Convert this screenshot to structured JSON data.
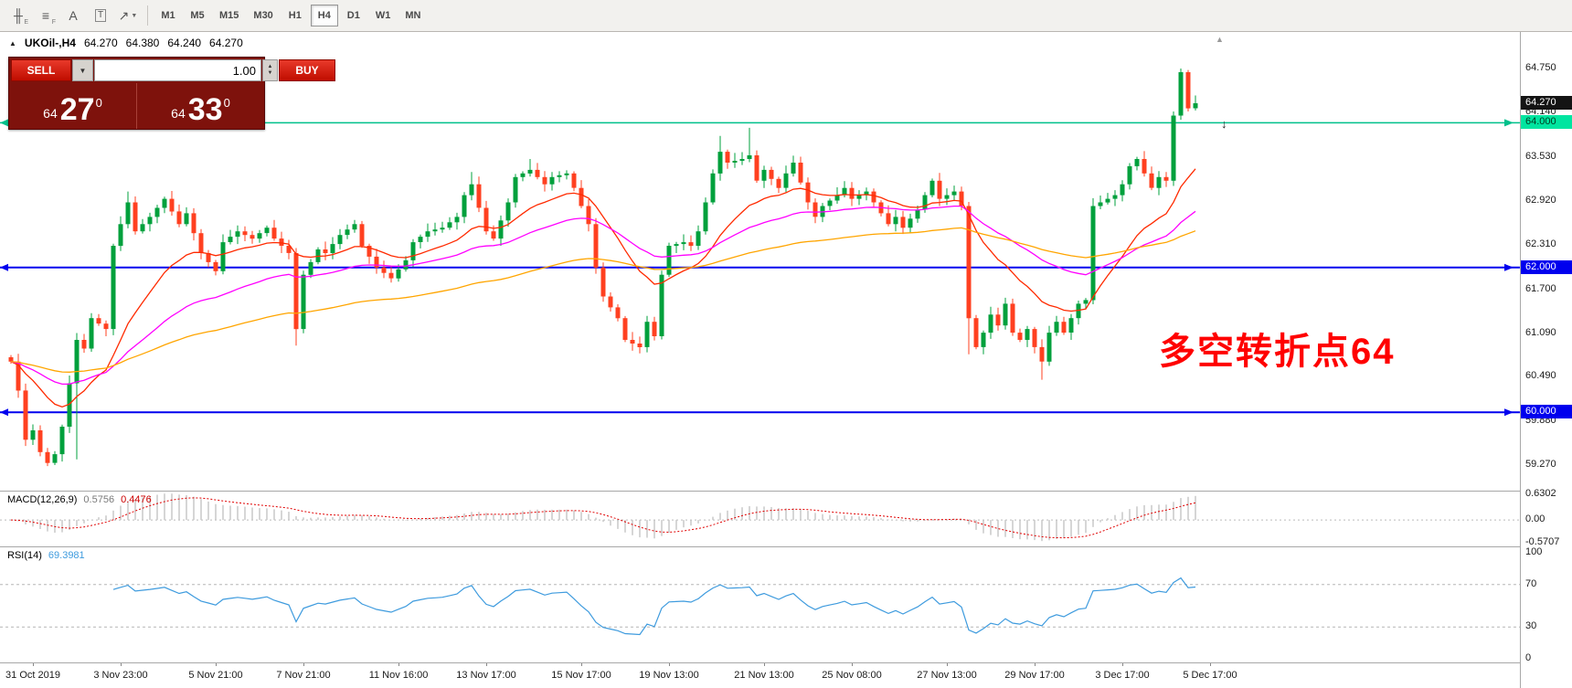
{
  "toolbar": {
    "icons": [
      {
        "name": "andrews-pitchfork-icon",
        "glyph": "╫",
        "sub": "E",
        "boxed": false,
        "dropdown": false
      },
      {
        "name": "fibonacci-lines-icon",
        "glyph": "≡",
        "sub": "F",
        "boxed": false,
        "dropdown": false
      },
      {
        "name": "text-label-icon",
        "glyph": "A",
        "sub": "",
        "boxed": false,
        "dropdown": false
      },
      {
        "name": "text-box-icon",
        "glyph": "T",
        "sub": "",
        "boxed": true,
        "dropdown": false
      },
      {
        "name": "arrow-tool-icon",
        "glyph": "↗",
        "sub": "",
        "boxed": false,
        "dropdown": true
      }
    ],
    "timeframes": [
      "M1",
      "M5",
      "M15",
      "M30",
      "H1",
      "H4",
      "D1",
      "W1",
      "MN"
    ],
    "active_timeframe": "H4"
  },
  "header": {
    "collapse_icon": "▲",
    "symbol": "UKOil-,H4",
    "open": "64.270",
    "high": "64.380",
    "low": "64.240",
    "close": "64.270"
  },
  "trade": {
    "sell_label": "SELL",
    "buy_label": "BUY",
    "volume": "1.00",
    "sell_price_main": "64",
    "sell_price_big": "27",
    "sell_price_sup": "0",
    "buy_price_main": "64",
    "buy_price_big": "33",
    "buy_price_sup": "0"
  },
  "annotation": {
    "text": "多空转折点64",
    "color": "#FF0000"
  },
  "chart_data": {
    "type": "candlestick",
    "symbol": "UKOil-",
    "timeframe": "H4",
    "up_color": "#00A03C",
    "down_color": "#FF4020",
    "y_axis_ticks": [
      "64.750",
      "64.140",
      "63.530",
      "62.920",
      "62.310",
      "61.700",
      "61.090",
      "60.490",
      "59.880",
      "59.270"
    ],
    "price_range": [
      58.9,
      65.25
    ],
    "candle_count": 163,
    "close_keypoints": [
      [
        0,
        60.7
      ],
      [
        1,
        60.3
      ],
      [
        2,
        59.62
      ],
      [
        3,
        59.75
      ],
      [
        4,
        59.45
      ],
      [
        5,
        59.3
      ],
      [
        6,
        59.42
      ],
      [
        7,
        59.8
      ],
      [
        9,
        61.0
      ],
      [
        10,
        60.88
      ],
      [
        11,
        61.3
      ],
      [
        13,
        61.15
      ],
      [
        14,
        62.3
      ],
      [
        16,
        62.9
      ],
      [
        17,
        62.5
      ],
      [
        19,
        62.7
      ],
      [
        21,
        62.95
      ],
      [
        23,
        62.6
      ],
      [
        24,
        62.75
      ],
      [
        26,
        62.2
      ],
      [
        28,
        61.95
      ],
      [
        29,
        62.35
      ],
      [
        31,
        62.5
      ],
      [
        33,
        62.4
      ],
      [
        35,
        62.55
      ],
      [
        36,
        62.4
      ],
      [
        38,
        62.2
      ],
      [
        39,
        61.15
      ],
      [
        40,
        61.9
      ],
      [
        42,
        62.25
      ],
      [
        43,
        62.2
      ],
      [
        45,
        62.45
      ],
      [
        47,
        62.6
      ],
      [
        48,
        62.3
      ],
      [
        50,
        62.0
      ],
      [
        52,
        61.85
      ],
      [
        54,
        62.1
      ],
      [
        55,
        62.35
      ],
      [
        57,
        62.5
      ],
      [
        59,
        62.55
      ],
      [
        61,
        62.7
      ],
      [
        62,
        63.0
      ],
      [
        63,
        63.15
      ],
      [
        65,
        62.5
      ],
      [
        66,
        62.4
      ],
      [
        68,
        62.9
      ],
      [
        69,
        63.25
      ],
      [
        71,
        63.35
      ],
      [
        73,
        63.15
      ],
      [
        74,
        63.25
      ],
      [
        76,
        63.3
      ],
      [
        77,
        63.1
      ],
      [
        79,
        62.6
      ],
      [
        80,
        62.0
      ],
      [
        81,
        61.6
      ],
      [
        83,
        61.3
      ],
      [
        84,
        61.0
      ],
      [
        86,
        60.9
      ],
      [
        87,
        61.25
      ],
      [
        88,
        61.05
      ],
      [
        89,
        61.9
      ],
      [
        90,
        62.3
      ],
      [
        92,
        62.35
      ],
      [
        93,
        62.3
      ],
      [
        94,
        62.5
      ],
      [
        96,
        63.3
      ],
      [
        97,
        63.6
      ],
      [
        98,
        63.45
      ],
      [
        100,
        63.5
      ],
      [
        101,
        63.55
      ],
      [
        102,
        63.2
      ],
      [
        103,
        63.35
      ],
      [
        105,
        63.1
      ],
      [
        106,
        63.3
      ],
      [
        107,
        63.45
      ],
      [
        109,
        62.9
      ],
      [
        110,
        62.7
      ],
      [
        111,
        62.85
      ],
      [
        113,
        63.0
      ],
      [
        114,
        63.1
      ],
      [
        115,
        62.95
      ],
      [
        117,
        63.05
      ],
      [
        118,
        62.9
      ],
      [
        120,
        62.6
      ],
      [
        121,
        62.7
      ],
      [
        122,
        62.55
      ],
      [
        124,
        62.8
      ],
      [
        125,
        63.0
      ],
      [
        126,
        63.2
      ],
      [
        127,
        62.95
      ],
      [
        129,
        63.05
      ],
      [
        130,
        62.85
      ],
      [
        131,
        61.3
      ],
      [
        132,
        60.9
      ],
      [
        133,
        61.1
      ],
      [
        134,
        61.35
      ],
      [
        135,
        61.2
      ],
      [
        136,
        61.5
      ],
      [
        137,
        61.1
      ],
      [
        138,
        61.0
      ],
      [
        139,
        61.15
      ],
      [
        140,
        60.9
      ],
      [
        141,
        60.7
      ],
      [
        142,
        61.1
      ],
      [
        143,
        61.25
      ],
      [
        144,
        61.1
      ],
      [
        145,
        61.3
      ],
      [
        146,
        61.5
      ],
      [
        147,
        61.55
      ],
      [
        148,
        62.85
      ],
      [
        149,
        62.9
      ],
      [
        150,
        62.95
      ],
      [
        151,
        63.0
      ],
      [
        152,
        63.15
      ],
      [
        153,
        63.4
      ],
      [
        154,
        63.5
      ],
      [
        155,
        63.3
      ],
      [
        156,
        63.1
      ],
      [
        157,
        63.25
      ],
      [
        158,
        63.2
      ],
      [
        159,
        64.1
      ],
      [
        160,
        64.7
      ],
      [
        161,
        64.2
      ],
      [
        162,
        64.27
      ]
    ],
    "extra_wicks": [
      [
        9,
        "low",
        59.35
      ],
      [
        16,
        "high",
        63.05
      ],
      [
        39,
        "low",
        60.92
      ],
      [
        63,
        "high",
        63.32
      ],
      [
        71,
        "high",
        63.5
      ],
      [
        97,
        "high",
        63.82
      ],
      [
        101,
        "high",
        63.93
      ],
      [
        131,
        "low",
        60.8
      ],
      [
        141,
        "low",
        60.45
      ],
      [
        160,
        "high",
        64.75
      ]
    ],
    "levels": [
      {
        "price": "64.000",
        "value": 64.0,
        "color": "#00C08B",
        "badge_bg": "#00E5A0",
        "badge_fg": "#00391F",
        "width": 1.5
      },
      {
        "price": "62.000",
        "value": 62.0,
        "color": "#0000EE",
        "badge_bg": "#0000EE",
        "badge_fg": "#FFFFFF",
        "width": 2
      },
      {
        "price": "60.000",
        "value": 60.0,
        "color": "#0000EE",
        "badge_bg": "#0000EE",
        "badge_fg": "#FFFFFF",
        "width": 2
      }
    ],
    "last_price": {
      "value": 64.27,
      "label": "64.270",
      "badge_bg": "#141414",
      "badge_fg": "#FFFFFF"
    },
    "moving_averages": [
      {
        "name": "ma-fast-red",
        "type": "ema",
        "period": 16,
        "color": "#FF2A00"
      },
      {
        "name": "ma-mid-magenta",
        "type": "ema",
        "period": 40,
        "color": "#FF00FF"
      },
      {
        "name": "ma-slow-orange",
        "type": "ema",
        "period": 95,
        "color": "#FFA500"
      }
    ],
    "x_axis_ticks": [
      {
        "label": "31 Oct 2019",
        "i": 3
      },
      {
        "label": "3 Nov 23:00",
        "i": 15
      },
      {
        "label": "5 Nov 21:00",
        "i": 28
      },
      {
        "label": "7 Nov 21:00",
        "i": 40
      },
      {
        "label": "11 Nov 16:00",
        "i": 53
      },
      {
        "label": "13 Nov 17:00",
        "i": 65
      },
      {
        "label": "15 Nov 17:00",
        "i": 78
      },
      {
        "label": "19 Nov 13:00",
        "i": 90
      },
      {
        "label": "21 Nov 13:00",
        "i": 103
      },
      {
        "label": "25 Nov 08:00",
        "i": 115
      },
      {
        "label": "27 Nov 13:00",
        "i": 128
      },
      {
        "label": "29 Nov 17:00",
        "i": 140
      },
      {
        "label": "3 Dec 17:00",
        "i": 152
      },
      {
        "label": "5 Dec 17:00",
        "i": 164
      }
    ],
    "indicators": [
      {
        "title": "MACD(12,26,9)",
        "value_main": "0.5756",
        "value_signal": "0.4476",
        "axis_ticks": [
          "0.6302",
          "0.00",
          "-0.5707"
        ],
        "axis_values": [
          0.6302,
          0,
          -0.5707
        ],
        "histogram_color": "#C4C4C4",
        "signal_color": "#E00000"
      },
      {
        "title": "RSI(14)",
        "value_main": "69.3981",
        "axis_ticks": [
          "100",
          "70",
          "30",
          "0"
        ],
        "axis_values": [
          100,
          70,
          30,
          0
        ],
        "levels": [
          70,
          30
        ],
        "line_color": "#3E9BDE"
      }
    ]
  }
}
